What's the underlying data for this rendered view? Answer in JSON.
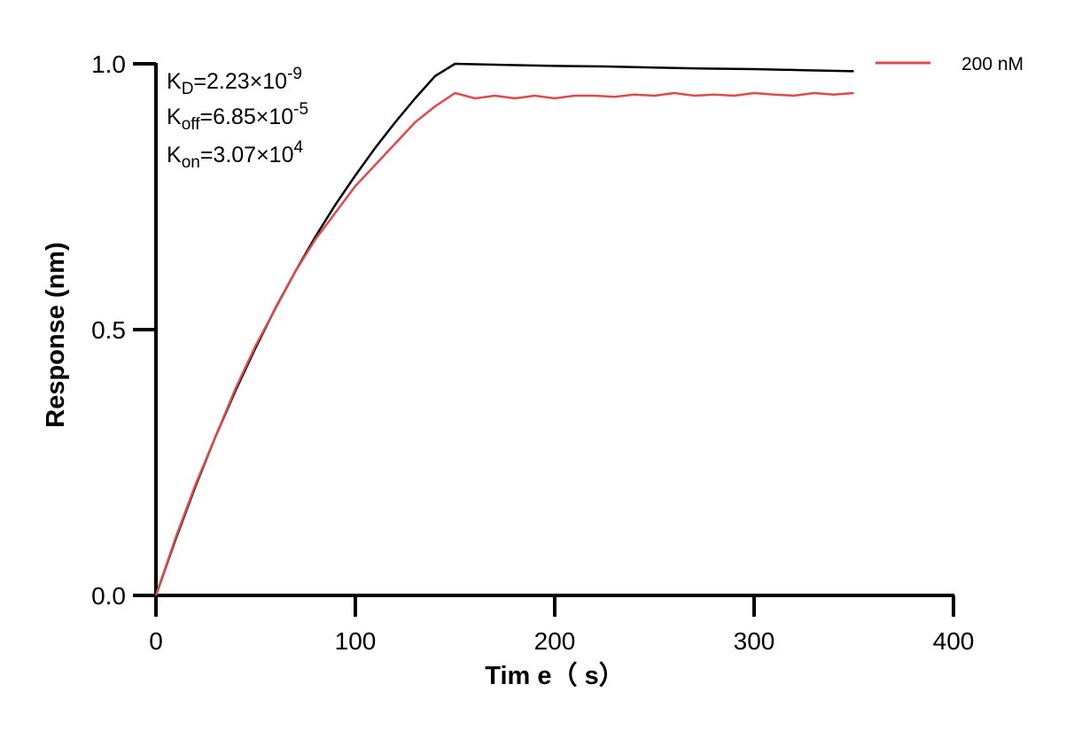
{
  "chart_data": {
    "type": "line",
    "title": "",
    "xlabel": "Tim e（ s）",
    "ylabel": "Response (nm)",
    "xlim": [
      0,
      400
    ],
    "ylim": [
      0,
      1.0
    ],
    "xticks": [
      "0",
      "100",
      "200",
      "300",
      "400"
    ],
    "yticks": [
      "0.0",
      "0.5",
      "1.0"
    ],
    "xtick_values": [
      0,
      100,
      200,
      300,
      400
    ],
    "ytick_values": [
      0,
      0.5,
      1.0
    ],
    "grid": false,
    "legend_position": "top-right",
    "annotations": {
      "kd": {
        "base": "K",
        "sub": "D",
        "eq": "=2.23×10",
        "sup": "-9"
      },
      "koff": {
        "base": "K",
        "sub": "off",
        "eq": "=6.85×10",
        "sup": "-5"
      },
      "kon": {
        "base": "K",
        "sub": "on",
        "eq": "=3.07×10",
        "sup": "4"
      }
    },
    "series": [
      {
        "name": "200 nM",
        "color": "#e04a4a",
        "role": "measured",
        "x": [
          0,
          10,
          20,
          30,
          40,
          50,
          60,
          70,
          80,
          90,
          100,
          110,
          120,
          130,
          140,
          150,
          160,
          170,
          180,
          190,
          200,
          210,
          220,
          230,
          240,
          250,
          260,
          270,
          280,
          290,
          300,
          310,
          320,
          330,
          340,
          350
        ],
        "y": [
          0,
          0.11,
          0.21,
          0.3,
          0.39,
          0.47,
          0.54,
          0.61,
          0.67,
          0.72,
          0.77,
          0.81,
          0.85,
          0.89,
          0.92,
          0.945,
          0.935,
          0.94,
          0.935,
          0.94,
          0.935,
          0.94,
          0.94,
          0.938,
          0.942,
          0.94,
          0.945,
          0.94,
          0.942,
          0.94,
          0.945,
          0.942,
          0.94,
          0.945,
          0.942,
          0.945
        ]
      },
      {
        "name": "",
        "color": "#000000",
        "role": "fit",
        "x": [
          0,
          10,
          20,
          30,
          40,
          50,
          60,
          70,
          80,
          90,
          100,
          110,
          120,
          130,
          140,
          150,
          175,
          200,
          225,
          250,
          275,
          300,
          325,
          350
        ],
        "y": [
          0,
          0.107,
          0.207,
          0.3,
          0.386,
          0.466,
          0.541,
          0.61,
          0.675,
          0.735,
          0.79,
          0.842,
          0.89,
          0.935,
          0.977,
          1.0,
          0.998,
          0.996,
          0.995,
          0.993,
          0.991,
          0.99,
          0.988,
          0.986
        ]
      }
    ]
  }
}
